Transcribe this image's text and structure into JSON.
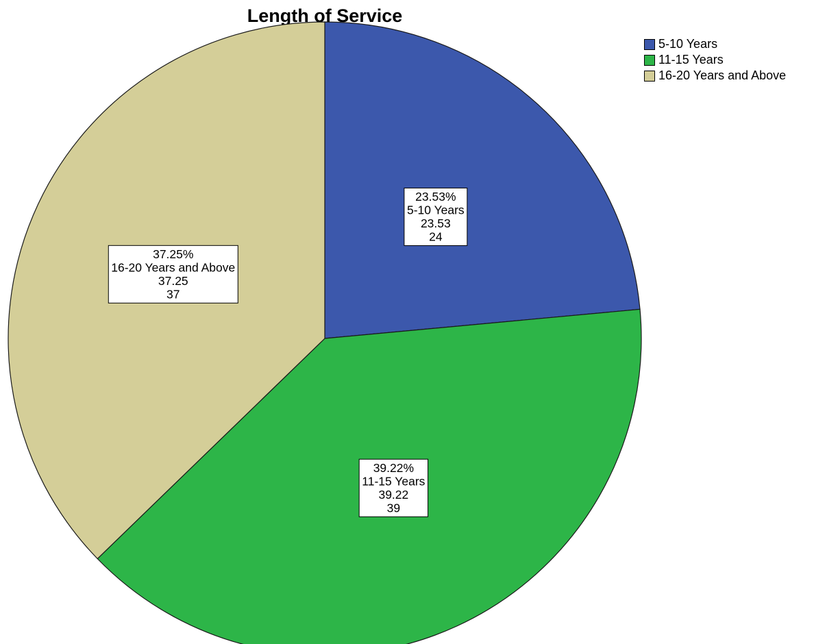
{
  "chart_data": {
    "type": "pie",
    "title": "Length of Service",
    "slices": [
      {
        "label": "5-10 Years",
        "percent_label": "23.53%",
        "value_label": "23.53",
        "count_label": "24",
        "percent": 23.53,
        "count": 24,
        "color": "#3c58ac"
      },
      {
        "label": "11-15 Years",
        "percent_label": "39.22%",
        "value_label": "39.22",
        "count_label": "39",
        "percent": 39.22,
        "count": 39,
        "color": "#2db548"
      },
      {
        "label": "16-20 Years and Above",
        "percent_label": "37.25%",
        "value_label": "37.25",
        "count_label": "37",
        "percent": 37.25,
        "count": 37,
        "color": "#d4ce98"
      }
    ],
    "legend": {
      "placement": "top-right",
      "items": [
        "5-10 Years",
        "11-15 Years",
        "16-20 Years and Above"
      ]
    },
    "start_angle": "12 o'clock",
    "direction": "clockwise"
  }
}
